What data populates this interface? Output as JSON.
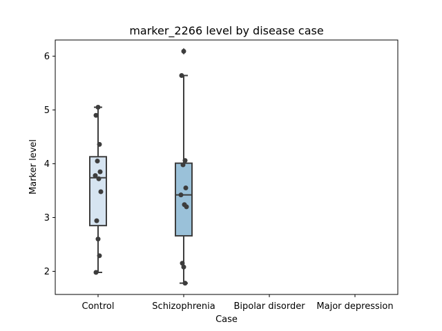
{
  "chart_data": {
    "type": "box",
    "title": "marker_2266 level by disease case",
    "xlabel": "Case",
    "ylabel": "Marker level",
    "categories": [
      "Control",
      "Schizophrenia",
      "Bipolar disorder",
      "Major depression"
    ],
    "y_ticks": [
      "2",
      "3",
      "4",
      "5",
      "6"
    ],
    "ylim": [
      1.57,
      6.3
    ],
    "grid": false,
    "legend": "none",
    "colors": {
      "box_fill": [
        "#d6e4f1",
        "#9ac1d9"
      ],
      "line": "#3d3d3d",
      "point": "#3d3d3d"
    },
    "boxes": [
      {
        "category": "Control",
        "q1": 2.85,
        "median": 3.74,
        "q3": 4.13,
        "whisker_low": 1.98,
        "whisker_high": 5.05,
        "outliers": []
      },
      {
        "category": "Schizophrenia",
        "q1": 2.66,
        "median": 3.42,
        "q3": 4.01,
        "whisker_low": 1.78,
        "whisker_high": 5.64,
        "outliers": [
          6.09
        ]
      },
      {
        "category": "Bipolar disorder",
        "empty": true
      },
      {
        "category": "Major depression",
        "empty": true
      }
    ],
    "points": [
      {
        "category": "Control",
        "values": [
          5.05,
          4.9,
          4.36,
          4.05,
          3.85,
          3.78,
          3.72,
          3.48,
          2.94,
          2.6,
          2.29,
          1.98
        ]
      },
      {
        "category": "Schizophrenia",
        "values": [
          6.09,
          5.64,
          4.06,
          3.98,
          3.55,
          3.42,
          3.24,
          3.2,
          2.15,
          2.08,
          1.78
        ]
      }
    ]
  }
}
